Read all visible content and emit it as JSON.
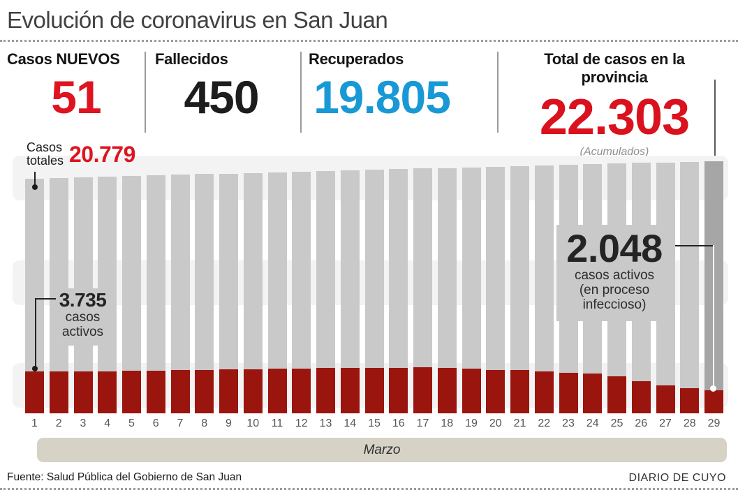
{
  "title": "Evolución de coronavirus en San Juan",
  "stats": [
    {
      "label": "Casos NUEVOS",
      "value": "51",
      "color": "#de1420"
    },
    {
      "label": "Fallecidos",
      "value": "450",
      "color": "#1d1d1d"
    },
    {
      "label": "Recuperados",
      "value": "19.805",
      "color": "#1899d6"
    },
    {
      "label": "Total de casos en la provincia",
      "value": "22.303",
      "sub": "(Acumulados)",
      "color": "#d9121d"
    }
  ],
  "annotations": {
    "totales_label": "Casos totales",
    "totales_value": "20.779",
    "start_value": "3.735",
    "start_line1": "casos",
    "start_line2": "activos",
    "end_value": "2.048",
    "end_line1": "casos activos",
    "end_line2": "(en proceso",
    "end_line3": "infeccioso)"
  },
  "axis": {
    "month": "Marzo"
  },
  "footer": {
    "source": "Fuente: Salud Pública del Gobierno de San Juan",
    "credit": "DIARIO DE CUYO"
  },
  "colors": {
    "accent_red": "#de1420",
    "accent_blue": "#1899d6",
    "bar_total": "#c9c9c9",
    "bar_total_last": "#a6a6a6",
    "bar_active": "#9b150f",
    "band": "#f3f3f3",
    "month_band": "#d6d3c6",
    "callout_box": "#c9c9c9"
  },
  "chart_data": {
    "type": "bar",
    "title": "Evolución de coronavirus en San Juan",
    "x": [
      1,
      2,
      3,
      4,
      5,
      6,
      7,
      8,
      9,
      10,
      11,
      12,
      13,
      14,
      15,
      16,
      17,
      18,
      19,
      20,
      21,
      22,
      23,
      24,
      25,
      26,
      27,
      28,
      29
    ],
    "x_axis_label": "Marzo",
    "ylim": [
      0,
      22303
    ],
    "grid": false,
    "legend": "none",
    "series": [
      {
        "name": "Casos totales",
        "color": "#c9c9c9",
        "values": [
          20779,
          20834,
          20889,
          20944,
          20999,
          21054,
          21109,
          21164,
          21219,
          21274,
          21329,
          21384,
          21439,
          21494,
          21549,
          21604,
          21659,
          21714,
          21769,
          21824,
          21879,
          21934,
          21989,
          22044,
          22099,
          22154,
          22205,
          22252,
          22303
        ]
      },
      {
        "name": "Casos activos (en proceso infeccioso)",
        "color": "#9b150f",
        "values": [
          3735,
          3720,
          3710,
          3715,
          3780,
          3800,
          3815,
          3860,
          3875,
          3920,
          3935,
          3980,
          3990,
          4030,
          4040,
          4045,
          4050,
          4040,
          3950,
          3830,
          3820,
          3710,
          3590,
          3540,
          3290,
          2870,
          2500,
          2210,
          2048
        ]
      }
    ],
    "labeled_points": {
      "casos_totales_dia_1": 20779,
      "casos_totales_dia_29": 22303,
      "casos_activos_dia_1": 3735,
      "casos_activos_dia_29": 2048,
      "casos_nuevos": 51,
      "fallecidos": 450,
      "recuperados": 19805
    },
    "note": "Only day-1 and day-29 values are labeled in the graphic; intermediate daily values are estimated from bar heights."
  }
}
